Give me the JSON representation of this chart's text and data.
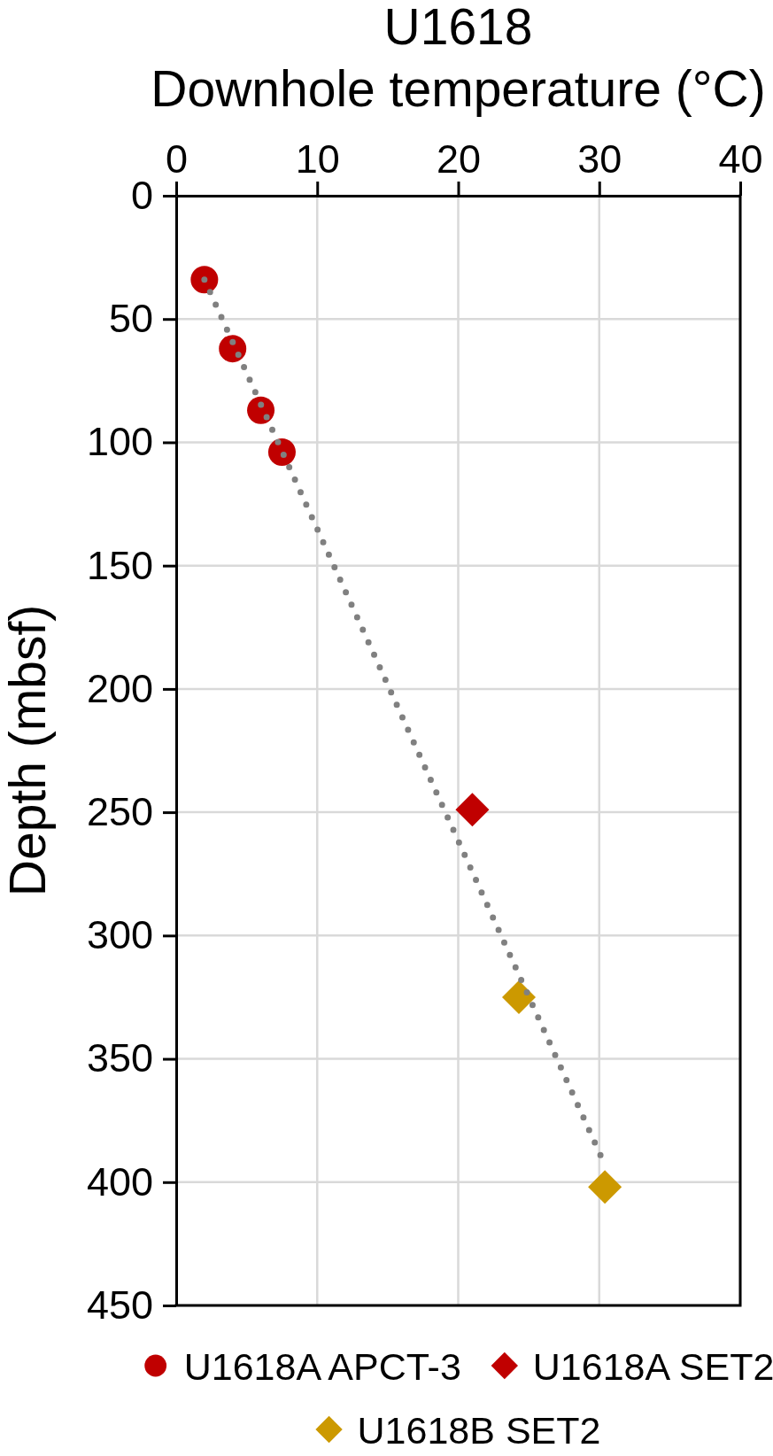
{
  "chart_data": {
    "type": "scatter",
    "title": "U1618",
    "xlabel": "Downhole temperature (°C)",
    "ylabel": "Depth (mbsf)",
    "xlim": [
      0,
      40
    ],
    "xticks": [
      0,
      10,
      20,
      30,
      40
    ],
    "ylim": [
      450,
      0
    ],
    "yticks": [
      0,
      50,
      100,
      150,
      200,
      250,
      300,
      350,
      400,
      450
    ],
    "grid": true,
    "legend": "bottom",
    "series": [
      {
        "name": "U1618A APCT-3",
        "color": "#c00000",
        "marker": "circle",
        "x": [
          2.0,
          4.0,
          6.0,
          7.5
        ],
        "values": [
          34,
          62,
          87,
          104
        ]
      },
      {
        "name": "U1618A SET2",
        "color": "#c00000",
        "marker": "diamond",
        "x": [
          21.0
        ],
        "values": [
          249
        ]
      },
      {
        "name": "U1618B SET2",
        "color": "#cc9900",
        "marker": "diamond",
        "x": [
          24.3,
          30.4
        ],
        "values": [
          325,
          402
        ]
      },
      {
        "type": "line",
        "color": "#808080",
        "marker": "none",
        "line_style": "dotted",
        "x": [
          2.0,
          30.4
        ],
        "values": [
          34,
          393
        ]
      }
    ]
  }
}
